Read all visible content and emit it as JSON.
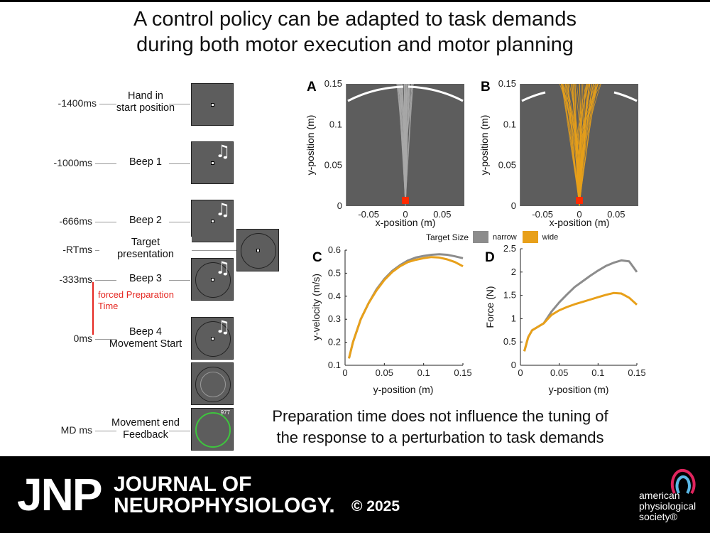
{
  "title": {
    "line1": "A control policy can be adapted to task demands",
    "line2": "during both motor execution and motor planning"
  },
  "timeline": {
    "events": [
      {
        "time": "-1400ms",
        "label_line1": "Hand in",
        "label_line2": "start position"
      },
      {
        "time": "-1000ms",
        "label_line1": "Beep 1",
        "label_line2": ""
      },
      {
        "time": "-666ms",
        "label_line1": "Beep 2",
        "label_line2": ""
      },
      {
        "time": "-RTms",
        "label_line1": "Target",
        "label_line2": "presentation"
      },
      {
        "time": "-333ms",
        "label_line1": "Beep 3",
        "label_line2": ""
      },
      {
        "time": "0ms",
        "label_line1": "Beep 4",
        "label_line2": "Movement Start"
      },
      {
        "time": "MD ms",
        "label_line1": "Movement end",
        "label_line2": "Feedback"
      }
    ],
    "forced_prep_line1": "forced Preparation",
    "forced_prep_line2": "Time",
    "feedback_score": "977",
    "note_symbol": "♫"
  },
  "panels": {
    "A": "A",
    "B": "B",
    "C": "C",
    "D": "D"
  },
  "legend": {
    "title": "Target Size",
    "items": [
      {
        "label": "narrow",
        "color": "#8c8c8c"
      },
      {
        "label": "wide",
        "color": "#e8a01a"
      }
    ]
  },
  "chart_data": [
    {
      "panel": "A",
      "type": "line",
      "xlabel": "x-position (m)",
      "ylabel": "y-position (m)",
      "xlim": [
        -0.08,
        0.08
      ],
      "ylim": [
        0,
        0.15
      ],
      "xticks": [
        "-0.05",
        "0",
        "0.05"
      ],
      "yticks": [
        "0",
        "0.05",
        "0.1",
        "0.15"
      ],
      "background": "#5d5d5d",
      "trace_color": "#a8a8a8",
      "condition": "narrow",
      "description_series": "many individual hand trajectories from start (0,0) toward target at y=0.15"
    },
    {
      "panel": "B",
      "type": "line",
      "xlabel": "x-position (m)",
      "ylabel": "y-position (m)",
      "xlim": [
        -0.08,
        0.08
      ],
      "ylim": [
        0,
        0.15
      ],
      "xticks": [
        "-0.05",
        "0",
        "0.05"
      ],
      "yticks": [
        "0",
        "0.05",
        "0.1",
        "0.15"
      ],
      "background": "#5d5d5d",
      "trace_color": "#e8a01a",
      "condition": "wide"
    },
    {
      "panel": "C",
      "type": "line",
      "xlabel": "y-position (m)",
      "ylabel": "y-velocity (m/s)",
      "xlim": [
        0,
        0.15
      ],
      "ylim": [
        0.1,
        0.6
      ],
      "xticks": [
        "0",
        "0.05",
        "0.1",
        "0.15"
      ],
      "yticks": [
        "0.1",
        "0.2",
        "0.3",
        "0.4",
        "0.5",
        "0.6"
      ],
      "series": [
        {
          "name": "narrow",
          "color": "#8c8c8c",
          "x": [
            0.005,
            0.01,
            0.02,
            0.03,
            0.04,
            0.05,
            0.06,
            0.07,
            0.08,
            0.09,
            0.1,
            0.11,
            0.12,
            0.13,
            0.14,
            0.15
          ],
          "y": [
            0.13,
            0.2,
            0.3,
            0.37,
            0.43,
            0.475,
            0.51,
            0.535,
            0.555,
            0.568,
            0.575,
            0.58,
            0.582,
            0.58,
            0.573,
            0.565
          ]
        },
        {
          "name": "wide",
          "color": "#e8a01a",
          "x": [
            0.005,
            0.01,
            0.02,
            0.03,
            0.04,
            0.05,
            0.06,
            0.07,
            0.08,
            0.09,
            0.1,
            0.11,
            0.12,
            0.13,
            0.14,
            0.15
          ],
          "y": [
            0.13,
            0.2,
            0.3,
            0.37,
            0.425,
            0.47,
            0.505,
            0.53,
            0.548,
            0.558,
            0.565,
            0.57,
            0.568,
            0.56,
            0.548,
            0.53
          ]
        }
      ]
    },
    {
      "panel": "D",
      "type": "line",
      "xlabel": "y-position (m)",
      "ylabel": "Force (N)",
      "xlim": [
        0,
        0.15
      ],
      "ylim": [
        0,
        2.5
      ],
      "xticks": [
        "0",
        "0.05",
        "0.1",
        "0.15"
      ],
      "yticks": [
        "0",
        "0.5",
        "1",
        "1.5",
        "2",
        "2.5"
      ],
      "series": [
        {
          "name": "narrow",
          "color": "#8c8c8c",
          "x": [
            0.005,
            0.01,
            0.015,
            0.02,
            0.03,
            0.04,
            0.05,
            0.06,
            0.07,
            0.08,
            0.09,
            0.1,
            0.11,
            0.12,
            0.13,
            0.14,
            0.15
          ],
          "y": [
            0.3,
            0.6,
            0.75,
            0.8,
            0.9,
            1.15,
            1.35,
            1.52,
            1.68,
            1.8,
            1.92,
            2.03,
            2.13,
            2.2,
            2.25,
            2.23,
            2.0
          ]
        },
        {
          "name": "wide",
          "color": "#e8a01a",
          "x": [
            0.005,
            0.01,
            0.015,
            0.02,
            0.03,
            0.04,
            0.05,
            0.06,
            0.07,
            0.08,
            0.09,
            0.1,
            0.11,
            0.12,
            0.13,
            0.14,
            0.15
          ],
          "y": [
            0.3,
            0.6,
            0.75,
            0.8,
            0.9,
            1.08,
            1.18,
            1.25,
            1.31,
            1.36,
            1.41,
            1.46,
            1.51,
            1.55,
            1.54,
            1.45,
            1.3
          ]
        }
      ]
    }
  ],
  "bottom_text": {
    "line1": "Preparation time does not influence the tuning of",
    "line2": "the response to a perturbation to task demands"
  },
  "footer": {
    "jnp": "JNP",
    "journal_line1": "JOURNAL OF",
    "journal_line2": "NEUROPHYSIOLOGY.",
    "copyright": "© 2025",
    "aps_line1": "american",
    "aps_line2": "physiological",
    "aps_line3": "society®"
  }
}
